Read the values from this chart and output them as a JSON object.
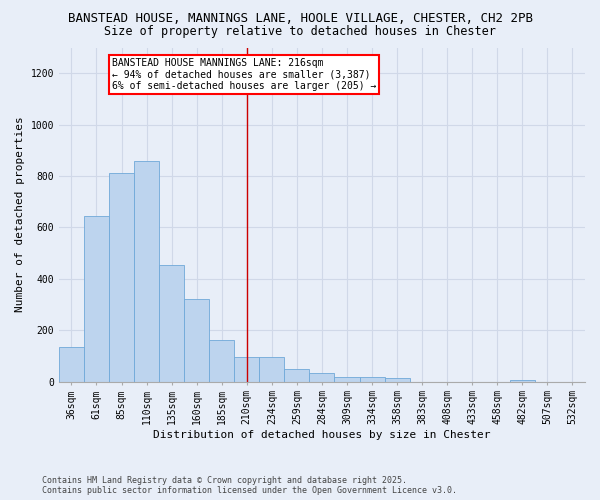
{
  "title_line1": "BANSTEAD HOUSE, MANNINGS LANE, HOOLE VILLAGE, CHESTER, CH2 2PB",
  "title_line2": "Size of property relative to detached houses in Chester",
  "xlabel": "Distribution of detached houses by size in Chester",
  "ylabel": "Number of detached properties",
  "footnote_line1": "Contains HM Land Registry data © Crown copyright and database right 2025.",
  "footnote_line2": "Contains public sector information licensed under the Open Government Licence v3.0.",
  "categories": [
    "36sqm",
    "61sqm",
    "85sqm",
    "110sqm",
    "135sqm",
    "160sqm",
    "185sqm",
    "210sqm",
    "234sqm",
    "259sqm",
    "284sqm",
    "309sqm",
    "334sqm",
    "358sqm",
    "383sqm",
    "408sqm",
    "433sqm",
    "458sqm",
    "482sqm",
    "507sqm",
    "532sqm"
  ],
  "values": [
    135,
    645,
    810,
    860,
    455,
    320,
    160,
    95,
    95,
    50,
    35,
    18,
    18,
    12,
    0,
    0,
    0,
    0,
    5,
    0,
    0
  ],
  "bar_color": "#bdd4ee",
  "bar_edge_color": "#6fa8d8",
  "background_color": "#e8eef8",
  "ylim": [
    0,
    1300
  ],
  "yticks": [
    0,
    200,
    400,
    600,
    800,
    1000,
    1200
  ],
  "annotation_text_line1": "BANSTEAD HOUSE MANNINGS LANE: 216sqm",
  "annotation_text_line2": "← 94% of detached houses are smaller (3,387)",
  "annotation_text_line3": "6% of semi-detached houses are larger (205) →",
  "vline_x_index": 7,
  "vline_color": "#cc0000",
  "grid_color": "#d0d8e8",
  "title_fontsize": 9,
  "subtitle_fontsize": 8.5,
  "axis_label_fontsize": 8,
  "tick_fontsize": 7,
  "annotation_fontsize": 7
}
